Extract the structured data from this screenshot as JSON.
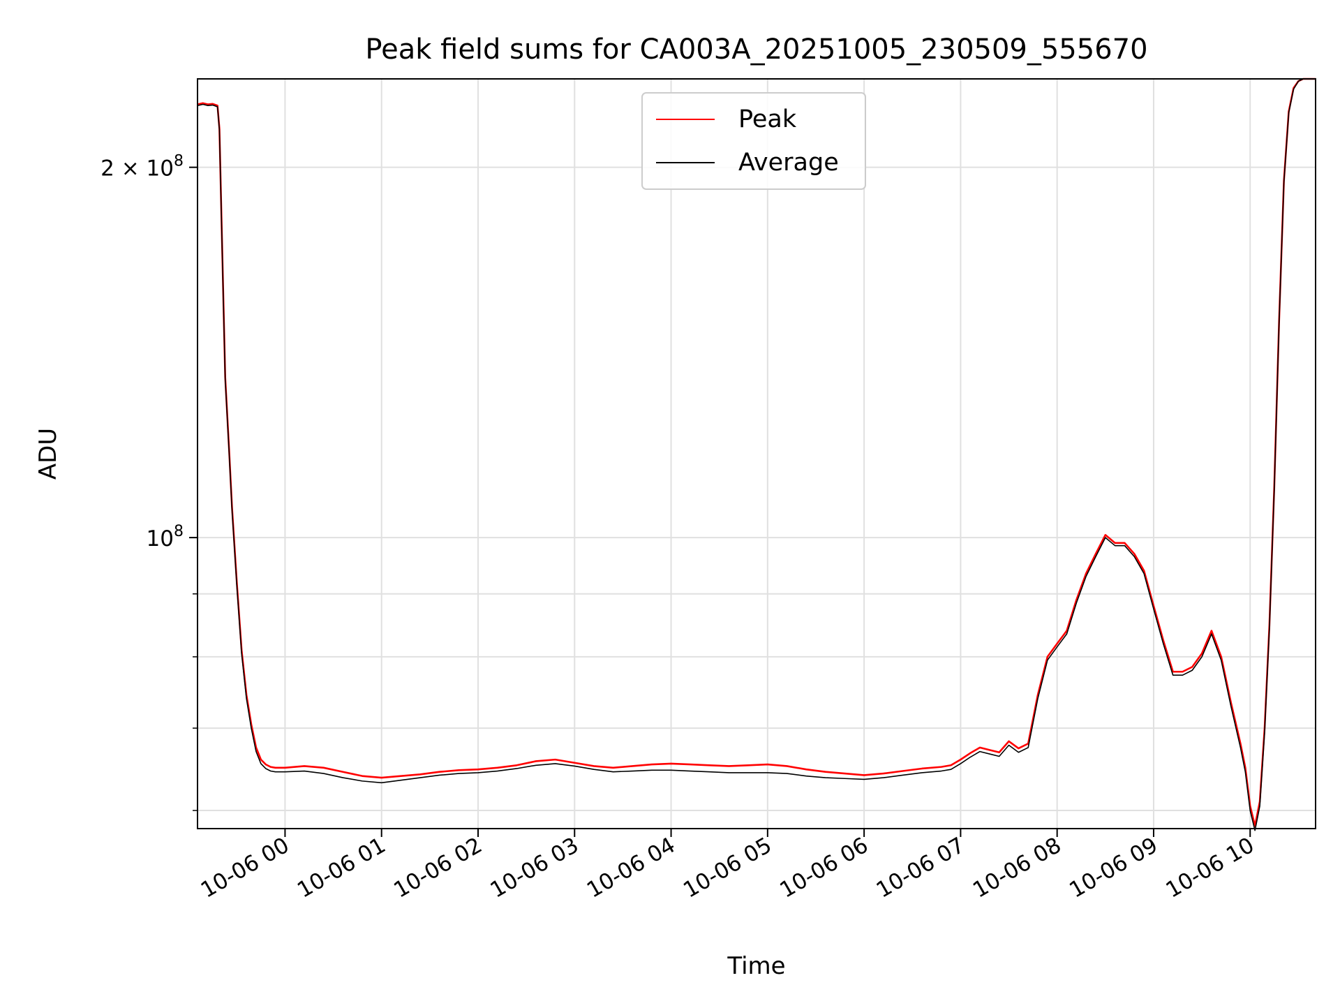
{
  "chart_data": {
    "type": "line",
    "title": "Peak field sums for CA003A_20251005_230509_555670",
    "xlabel": "Time",
    "ylabel": "ADU",
    "yscale": "log",
    "ylim": [
      58000000,
      236000000
    ],
    "xlim": [
      -0.907,
      10.678
    ],
    "grid": true,
    "legend_position": "upper center",
    "x_ticks": [
      {
        "value": 0,
        "label": "10-06 00"
      },
      {
        "value": 1,
        "label": "10-06 01"
      },
      {
        "value": 2,
        "label": "10-06 02"
      },
      {
        "value": 3,
        "label": "10-06 03"
      },
      {
        "value": 4,
        "label": "10-06 04"
      },
      {
        "value": 5,
        "label": "10-06 05"
      },
      {
        "value": 6,
        "label": "10-06 06"
      },
      {
        "value": 7,
        "label": "10-06 07"
      },
      {
        "value": 8,
        "label": "10-06 08"
      },
      {
        "value": 9,
        "label": "10-06 09"
      },
      {
        "value": 10,
        "label": "10-06 10"
      }
    ],
    "y_major_ticks": [
      {
        "value": 100000000,
        "base": "10",
        "exp": "8",
        "coef": ""
      },
      {
        "value": 200000000,
        "base": "10",
        "exp": "8",
        "coef": "2 × "
      }
    ],
    "y_minor_ticks": [
      60000000,
      70000000,
      80000000,
      90000000
    ],
    "x_unit_note": "x values are hours relative to 10-06 00:00",
    "series": [
      {
        "name": "Peak",
        "color": "#ff0000",
        "x": [
          -0.907,
          -0.85,
          -0.8,
          -0.75,
          -0.7,
          -0.68,
          -0.65,
          -0.62,
          -0.58,
          -0.55,
          -0.5,
          -0.45,
          -0.4,
          -0.35,
          -0.3,
          -0.25,
          -0.2,
          -0.15,
          -0.1,
          -0.05,
          0.0,
          0.2,
          0.4,
          0.6,
          0.8,
          1.0,
          1.2,
          1.4,
          1.6,
          1.8,
          2.0,
          2.2,
          2.4,
          2.6,
          2.8,
          3.0,
          3.2,
          3.4,
          3.6,
          3.8,
          4.0,
          4.2,
          4.4,
          4.6,
          4.8,
          5.0,
          5.2,
          5.4,
          5.6,
          5.8,
          6.0,
          6.2,
          6.4,
          6.6,
          6.8,
          6.9,
          7.0,
          7.1,
          7.2,
          7.3,
          7.4,
          7.5,
          7.6,
          7.7,
          7.8,
          7.9,
          8.0,
          8.1,
          8.2,
          8.3,
          8.4,
          8.5,
          8.6,
          8.7,
          8.8,
          8.9,
          9.0,
          9.1,
          9.2,
          9.3,
          9.4,
          9.5,
          9.6,
          9.7,
          9.8,
          9.9,
          9.95,
          10.0,
          10.05,
          10.1,
          10.15,
          10.2,
          10.25,
          10.3,
          10.35,
          10.4,
          10.45,
          10.5,
          10.55,
          10.6,
          10.678
        ],
        "values": [
          225000000,
          225500000,
          225000000,
          225200000,
          224500000,
          215000000,
          170000000,
          135000000,
          118000000,
          106000000,
          92000000,
          81000000,
          74500000,
          70500000,
          67500000,
          66000000,
          65400000,
          65100000,
          65000000,
          65000000,
          65000000,
          65200000,
          65000000,
          64500000,
          64000000,
          63800000,
          64000000,
          64200000,
          64500000,
          64700000,
          64800000,
          65000000,
          65300000,
          65800000,
          66000000,
          65600000,
          65200000,
          65000000,
          65200000,
          65400000,
          65500000,
          65400000,
          65300000,
          65200000,
          65300000,
          65400000,
          65200000,
          64800000,
          64500000,
          64300000,
          64100000,
          64300000,
          64600000,
          64900000,
          65100000,
          65300000,
          66000000,
          66800000,
          67500000,
          67200000,
          66900000,
          68300000,
          67400000,
          68000000,
          74500000,
          80000000,
          82000000,
          84000000,
          89000000,
          93500000,
          97000000,
          100500000,
          99000000,
          99000000,
          97000000,
          94000000,
          88000000,
          82500000,
          77800000,
          77800000,
          78500000,
          80500000,
          84000000,
          80000000,
          73500000,
          68000000,
          65000000,
          60500000,
          58300000,
          61000000,
          70000000,
          85000000,
          110000000,
          150000000,
          195000000,
          222000000,
          232000000,
          235000000,
          236000000,
          236000000,
          236000000
        ]
      },
      {
        "name": "Average",
        "color": "#000000",
        "x": [
          -0.907,
          -0.85,
          -0.8,
          -0.75,
          -0.7,
          -0.68,
          -0.65,
          -0.62,
          -0.58,
          -0.55,
          -0.5,
          -0.45,
          -0.4,
          -0.35,
          -0.3,
          -0.25,
          -0.2,
          -0.15,
          -0.1,
          -0.05,
          0.0,
          0.2,
          0.4,
          0.6,
          0.8,
          1.0,
          1.2,
          1.4,
          1.6,
          1.8,
          2.0,
          2.2,
          2.4,
          2.6,
          2.8,
          3.0,
          3.2,
          3.4,
          3.6,
          3.8,
          4.0,
          4.2,
          4.4,
          4.6,
          4.8,
          5.0,
          5.2,
          5.4,
          5.6,
          5.8,
          6.0,
          6.2,
          6.4,
          6.6,
          6.8,
          6.9,
          7.0,
          7.1,
          7.2,
          7.3,
          7.4,
          7.5,
          7.6,
          7.7,
          7.8,
          7.9,
          8.0,
          8.1,
          8.2,
          8.3,
          8.4,
          8.5,
          8.6,
          8.7,
          8.8,
          8.9,
          9.0,
          9.1,
          9.2,
          9.3,
          9.4,
          9.5,
          9.6,
          9.7,
          9.8,
          9.9,
          9.95,
          10.0,
          10.05,
          10.1,
          10.15,
          10.2,
          10.25,
          10.3,
          10.35,
          10.4,
          10.45,
          10.5,
          10.55,
          10.6,
          10.678
        ],
        "values": [
          224500000,
          225000000,
          224500000,
          224700000,
          224000000,
          214500000,
          169500000,
          134500000,
          117500000,
          105500000,
          91500000,
          80500000,
          74000000,
          70000000,
          67000000,
          65500000,
          64900000,
          64600000,
          64500000,
          64500000,
          64500000,
          64600000,
          64300000,
          63800000,
          63400000,
          63200000,
          63500000,
          63800000,
          64100000,
          64300000,
          64400000,
          64600000,
          64900000,
          65300000,
          65500000,
          65200000,
          64800000,
          64500000,
          64600000,
          64700000,
          64700000,
          64600000,
          64500000,
          64400000,
          64400000,
          64400000,
          64300000,
          64000000,
          63800000,
          63700000,
          63600000,
          63800000,
          64100000,
          64400000,
          64600000,
          64800000,
          65500000,
          66300000,
          67000000,
          66700000,
          66400000,
          67800000,
          66900000,
          67500000,
          74000000,
          79500000,
          81500000,
          83500000,
          88500000,
          93000000,
          96500000,
          100000000,
          98500000,
          98500000,
          96500000,
          93500000,
          87500000,
          82000000,
          77300000,
          77300000,
          78000000,
          80000000,
          83500000,
          79500000,
          73000000,
          67500000,
          64500000,
          60000000,
          57800000,
          60500000,
          69500000,
          84500000,
          109500000,
          149500000,
          194500000,
          221500000,
          231500000,
          235000000,
          236000000,
          236000000,
          236000000
        ]
      }
    ]
  }
}
